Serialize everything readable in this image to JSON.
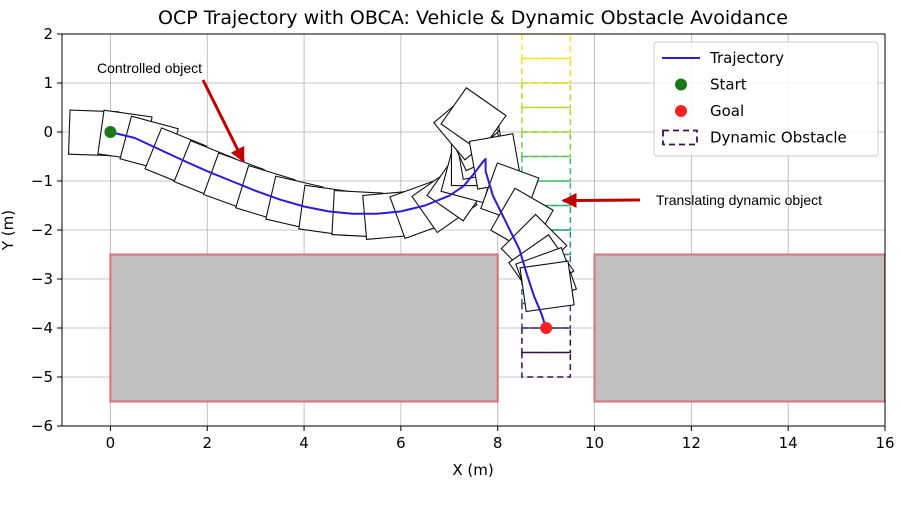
{
  "chart_data": {
    "type": "line",
    "title": "OCP Trajectory with OBCA: Vehicle & Dynamic Obstacle Avoidance",
    "xlabel": "X (m)",
    "ylabel": "Y (m)",
    "xlim": [
      -1,
      16
    ],
    "ylim": [
      -6,
      2
    ],
    "xticks": [
      "0",
      "2",
      "4",
      "6",
      "8",
      "10",
      "12",
      "14",
      "16"
    ],
    "yticks": [
      "−6",
      "−5",
      "−4",
      "−3",
      "−2",
      "−1",
      "0",
      "1",
      "2"
    ],
    "grid": true,
    "legend_position": "top-right",
    "legend": [
      {
        "label": "Trajectory",
        "kind": "line",
        "color": "#2a1bd6"
      },
      {
        "label": "Start",
        "kind": "marker",
        "color": "#1a7a1a"
      },
      {
        "label": "Goal",
        "kind": "marker",
        "color": "#ff2020"
      },
      {
        "label": "Dynamic Obstacle",
        "kind": "dashed-box",
        "color": "#3b0f4f"
      }
    ],
    "trajectory": {
      "color": "#2a1bd6",
      "x": [
        0,
        0.5,
        1.0,
        1.5,
        2.0,
        2.5,
        3.0,
        3.5,
        4.0,
        4.5,
        5.0,
        5.5,
        6.0,
        6.5,
        7.0,
        7.3,
        7.55,
        7.7,
        7.75,
        7.75,
        7.9,
        8.2,
        8.45,
        8.6,
        8.75,
        8.9,
        9.0
      ],
      "y": [
        0,
        -0.12,
        -0.35,
        -0.58,
        -0.8,
        -1.0,
        -1.2,
        -1.38,
        -1.52,
        -1.62,
        -1.67,
        -1.67,
        -1.62,
        -1.5,
        -1.3,
        -1.1,
        -0.8,
        -0.6,
        -0.55,
        -0.8,
        -1.3,
        -1.9,
        -2.4,
        -2.9,
        -3.35,
        -3.7,
        -4.0
      ]
    },
    "start": {
      "x": 0,
      "y": 0,
      "color": "#1a7a1a"
    },
    "goal": {
      "x": 9,
      "y": -4,
      "color": "#ff2020"
    },
    "static_obstacles": [
      {
        "x": [
          0,
          8
        ],
        "y": [
          -5.5,
          -2.5
        ],
        "fill": "#c0c0c0",
        "edge": "#e07070"
      },
      {
        "x": [
          10,
          16
        ],
        "y": [
          -5.5,
          -2.5
        ],
        "fill": "#c0c0c0",
        "edge": "#e07070"
      }
    ],
    "vehicle_poses": [
      {
        "x": -0.35,
        "y": -0.02,
        "a": 2
      },
      {
        "x": 0.3,
        "y": -0.07,
        "a": 8
      },
      {
        "x": 0.8,
        "y": -0.24,
        "a": 15
      },
      {
        "x": 1.35,
        "y": -0.52,
        "a": 22
      },
      {
        "x": 1.95,
        "y": -0.78,
        "a": 22
      },
      {
        "x": 2.55,
        "y": -1.02,
        "a": 20
      },
      {
        "x": 3.2,
        "y": -1.26,
        "a": 17
      },
      {
        "x": 3.8,
        "y": -1.45,
        "a": 13
      },
      {
        "x": 4.45,
        "y": -1.6,
        "a": 8
      },
      {
        "x": 5.1,
        "y": -1.67,
        "a": 3
      },
      {
        "x": 5.75,
        "y": -1.7,
        "a": -5
      },
      {
        "x": 6.4,
        "y": -1.58,
        "a": -20
      },
      {
        "x": 6.9,
        "y": -1.4,
        "a": -35
      },
      {
        "x": 7.2,
        "y": -1.15,
        "a": -55
      },
      {
        "x": 7.4,
        "y": -0.85,
        "a": -75
      },
      {
        "x": 7.5,
        "y": -0.6,
        "a": -90
      },
      {
        "x": 7.65,
        "y": -0.4,
        "a": -100
      },
      {
        "x": 7.55,
        "y": -0.15,
        "a": -115
      },
      {
        "x": 7.35,
        "y": 0.1,
        "a": -130
      },
      {
        "x": 7.5,
        "y": 0.25,
        "a": -145
      },
      {
        "x": 7.95,
        "y": -0.6,
        "a": -100
      },
      {
        "x": 8.25,
        "y": -1.25,
        "a": -70
      },
      {
        "x": 8.5,
        "y": -1.8,
        "a": -60
      },
      {
        "x": 8.75,
        "y": -2.35,
        "a": -45
      },
      {
        "x": 8.9,
        "y": -2.75,
        "a": -35
      },
      {
        "x": 9.0,
        "y": -2.95,
        "a": -20
      },
      {
        "x": 9.02,
        "y": -3.15,
        "a": -8
      }
    ],
    "vehicle_size": {
      "length": 1.0,
      "width": 0.9
    },
    "dynamic_obstacle": {
      "x": [
        8.5,
        9.5
      ],
      "y_min": -5,
      "y_max": 2,
      "step": 0.5,
      "box_height": 0.5,
      "colors": [
        "#3b0f4f",
        "#3d3a8c",
        "#34699a",
        "#2a8c8c",
        "#21a285",
        "#3dbb6c",
        "#78cc4a",
        "#b5d92e",
        "#eee21e",
        "#fde725"
      ]
    },
    "annotations": [
      {
        "text": "Controlled object",
        "arrow_to": {
          "x": 2.75,
          "y": -0.6
        }
      },
      {
        "text": "Translating dynamic object",
        "arrow_to": {
          "x": 9.35,
          "y": -1.4
        }
      }
    ],
    "annotation_color": "#c00000"
  }
}
